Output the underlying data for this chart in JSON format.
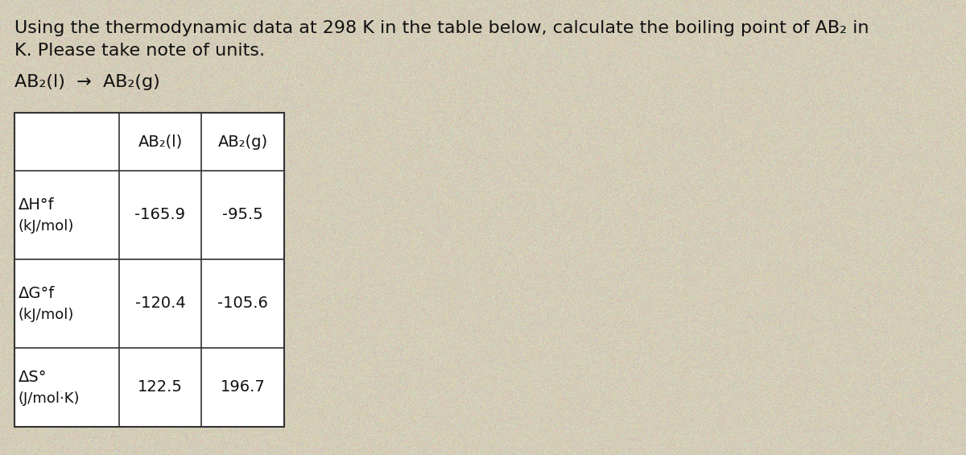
{
  "bg_color": "#d4cdb8",
  "title_line1": "Using the thermodynamic data at 298 K in the table below, calculate the boiling point of AB₂ in",
  "title_line2": "K. Please take note of units.",
  "reaction": "AB₂(l)  →  AB₂(g)",
  "table_header_col1": "AB₂(l)",
  "table_header_col2": "AB₂(g)",
  "row1_label1": "ΔH°f",
  "row1_label2": "(kJ/mol)",
  "row1_val1": "-165.9",
  "row1_val2": "-95.5",
  "row2_label1": "ΔG°f",
  "row2_label2": "(kJ/mol)",
  "row2_val1": "-120.4",
  "row2_val2": "-105.6",
  "row3_label1": "ΔS°",
  "row3_label2": "(J/mol·K)",
  "row3_val1": "122.5",
  "row3_val2": "196.7",
  "font_size_title": 16,
  "font_size_table": 14,
  "font_size_reaction": 16,
  "text_color": "#111111",
  "table_border_color": "#333333",
  "font_family": "DejaVu Sans"
}
